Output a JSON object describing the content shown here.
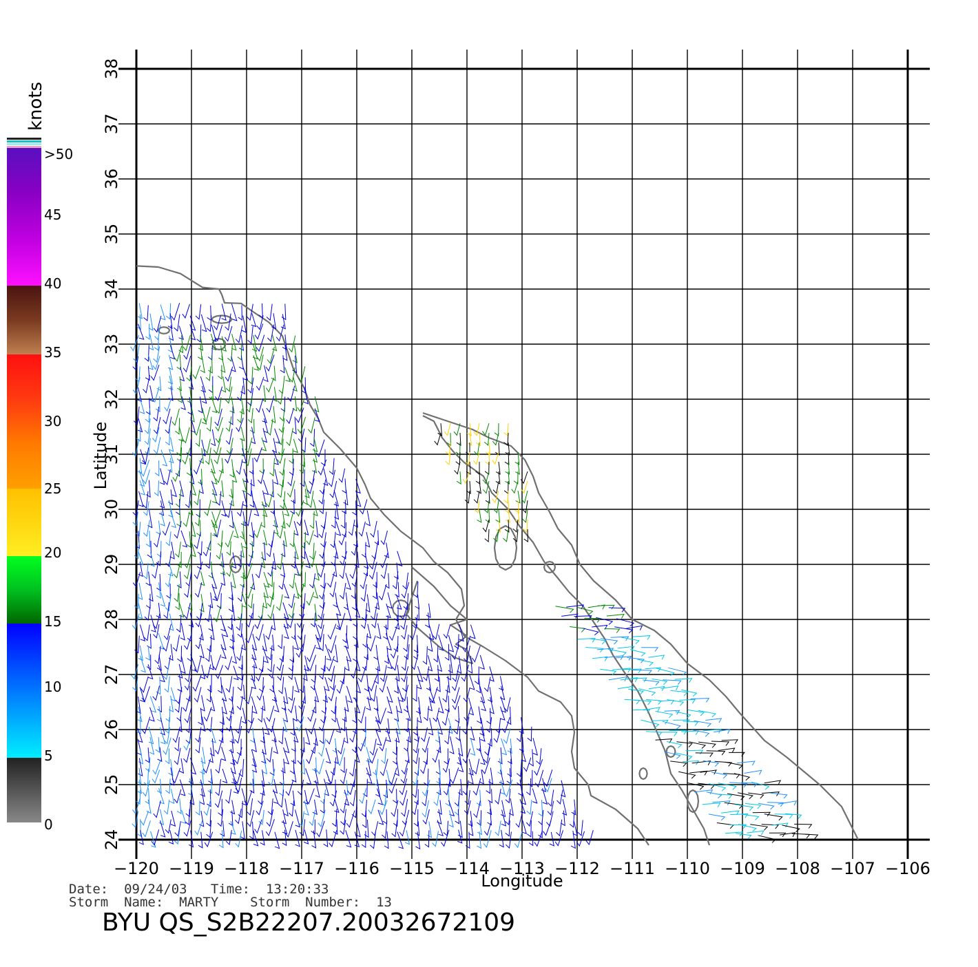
{
  "map": {
    "xlabel": "Longitude",
    "ylabel": "Latitude",
    "lon_min": -120,
    "lon_max": -106,
    "lat_min": 24,
    "lat_max": 38,
    "lon_ticks": [
      "-120",
      "-119",
      "-118",
      "-117",
      "-116",
      "-115",
      "-114",
      "-113",
      "-112",
      "-111",
      "-110",
      "-109",
      "-108",
      "-107",
      "-106"
    ],
    "lat_ticks": [
      "24",
      "25",
      "26",
      "27",
      "28",
      "29",
      "30",
      "31",
      "32",
      "33",
      "34",
      "35",
      "36",
      "37",
      "38"
    ],
    "grid": true
  },
  "legend": {
    "title": "knots",
    "labels": [
      ">50",
      "45",
      "40",
      "35",
      "30",
      "25",
      "20",
      "15",
      "10",
      "5",
      "0"
    ],
    "colors": {
      "over50": "#5a0fc0",
      "k45": "#a000c8",
      "k40": "#ff10ff",
      "k35": "#6a2a1c",
      "k30": "#ff1010",
      "k25": "#ff7a00",
      "k20": "#ffee22",
      "k15": "#00dd22",
      "k10": "#0000ff",
      "k5": "#00eeff",
      "k0": "#777777"
    }
  },
  "info": {
    "date_line": "Date:  09/24/03   Time:  13:20:33",
    "storm_line": "Storm  Name:  MARTY    Storm  Number:  13",
    "product": "BYU  QS_S2B22207.20032672109"
  },
  "colors": {
    "coast": "#707070",
    "grid": "#000000",
    "wind_blue": "#0000dd",
    "wind_light": "#1e90ff",
    "wind_cyan": "#00c8e6",
    "wind_green": "#008800",
    "wind_yellow": "#ffd000",
    "wind_black": "#000000"
  }
}
